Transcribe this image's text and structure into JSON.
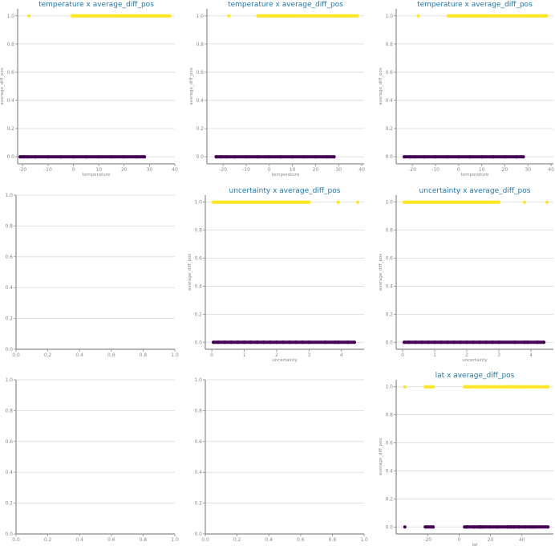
{
  "colors": {
    "positive": "#fde725",
    "negative": "#440154",
    "title": "#1f77b4",
    "axis": "#8a8a8a",
    "grid": "#d9d9d9"
  },
  "chart_data": [
    {
      "type": "scatter",
      "title": "temperature x average_diff_pos",
      "xlabel": "temperature",
      "ylabel": "average_diff_pos",
      "xlim": [
        -22,
        40
      ],
      "ylim": [
        -0.05,
        1.05
      ],
      "xticks": [
        -20,
        -10,
        0,
        10,
        20,
        30,
        40
      ],
      "yticks": [
        0.0,
        0.2,
        0.4,
        0.6,
        0.8,
        1.0
      ],
      "grid": true,
      "series": [
        {
          "values_x": [
            -17.5,
            -0.5,
            1.5,
            2.5,
            4.0,
            5.0,
            10.0,
            15.0,
            20.0,
            25.0,
            30.0,
            35.0,
            38.0
          ],
          "values_y": [
            1,
            1,
            1,
            1,
            1,
            1,
            1,
            1,
            1,
            1,
            1,
            1,
            1
          ],
          "color": "positive"
        },
        {
          "values_x": [
            -21.0,
            -19.5,
            -18.0,
            -15.0,
            -10.0,
            -5.0,
            0.0,
            5.0,
            10.0,
            15.0,
            20.0,
            25.0,
            28.0
          ],
          "values_y": [
            0,
            0,
            0,
            0,
            0,
            0,
            0,
            0,
            0,
            0,
            0,
            0,
            0
          ],
          "color": "negative"
        }
      ]
    },
    {
      "type": "scatter",
      "title": "temperature x average_diff_pos",
      "xlabel": "temperature",
      "ylabel": "average_diff_pos",
      "xlim": [
        -27,
        41
      ],
      "ylim": [
        -0.05,
        1.05
      ],
      "xticks": [
        -20,
        -10,
        0,
        10,
        20,
        30,
        40
      ],
      "yticks": [
        0.0,
        0.2,
        0.4,
        0.6,
        0.8,
        1.0
      ],
      "grid": true,
      "series": [
        {
          "values_x": [
            -17.5,
            -5.0,
            0.5,
            1.5,
            2.5,
            4.5,
            10.0,
            15.0,
            20.0,
            25.0,
            30.0,
            35.0,
            38.0
          ],
          "values_y": [
            1,
            1,
            1,
            1,
            1,
            1,
            1,
            1,
            1,
            1,
            1,
            1,
            1
          ],
          "color": "positive"
        },
        {
          "values_x": [
            -23.0,
            -21.0,
            -18.5,
            -15.0,
            -10.0,
            -5.0,
            0.0,
            5.0,
            10.0,
            15.0,
            20.0,
            25.0,
            28.0
          ],
          "values_y": [
            0,
            0,
            0,
            0,
            0,
            0,
            0,
            0,
            0,
            0,
            0,
            0,
            0
          ],
          "color": "negative"
        }
      ]
    },
    {
      "type": "scatter",
      "title": "temperature x average_diff_pos",
      "xlabel": "temperature",
      "ylabel": "average_diff_pos",
      "xlim": [
        -27,
        41
      ],
      "ylim": [
        -0.05,
        1.05
      ],
      "xticks": [
        -20,
        -10,
        0,
        10,
        20,
        30,
        40
      ],
      "yticks": [
        0.0,
        0.2,
        0.4,
        0.6,
        0.8,
        1.0
      ],
      "grid": true,
      "series": [
        {
          "values_x": [
            -17.5,
            -4.5,
            1.0,
            2.0,
            3.5,
            5.0,
            10.0,
            15.0,
            20.0,
            25.0,
            30.0,
            35.0,
            38.0
          ],
          "values_y": [
            1,
            1,
            1,
            1,
            1,
            1,
            1,
            1,
            1,
            1,
            1,
            1,
            1
          ],
          "color": "positive"
        },
        {
          "values_x": [
            -23.5,
            -21.0,
            -19.0,
            -15.0,
            -10.0,
            -5.0,
            0.0,
            5.0,
            10.0,
            15.0,
            20.0,
            25.0,
            28.0
          ],
          "values_y": [
            0,
            0,
            0,
            0,
            0,
            0,
            0,
            0,
            0,
            0,
            0,
            0,
            0
          ],
          "color": "negative"
        }
      ]
    },
    {
      "type": "scatter",
      "title": "",
      "xlabel": "",
      "ylabel": "",
      "xlim": [
        0,
        1
      ],
      "ylim": [
        0,
        1
      ],
      "xticks": [
        0.0,
        0.2,
        0.4,
        0.6,
        0.8,
        1.0
      ],
      "yticks": [
        0.0,
        0.2,
        0.4,
        0.6,
        0.8,
        1.0
      ],
      "grid": true,
      "series": []
    },
    {
      "type": "scatter",
      "title": "uncertainty x average_diff_pos",
      "xlabel": "uncertainty",
      "ylabel": "average_diff_pos",
      "xlim": [
        -0.2,
        4.7
      ],
      "ylim": [
        -0.05,
        1.05
      ],
      "xticks": [
        0,
        1,
        2,
        3,
        4
      ],
      "yticks": [
        0.0,
        0.2,
        0.4,
        0.6,
        0.8,
        1.0
      ],
      "grid": true,
      "series": [
        {
          "values_x": [
            0.05,
            0.2,
            0.4,
            0.6,
            0.8,
            1.0,
            1.2,
            1.4,
            1.6,
            1.8,
            2.0,
            2.2,
            2.4,
            2.6,
            2.8,
            3.0,
            3.9,
            4.5
          ],
          "values_y": [
            1,
            1,
            1,
            1,
            1,
            1,
            1,
            1,
            1,
            1,
            1,
            1,
            1,
            1,
            1,
            1,
            1,
            1
          ],
          "color": "positive"
        },
        {
          "values_x": [
            0.05,
            0.2,
            0.4,
            0.6,
            0.8,
            1.0,
            1.2,
            1.4,
            1.6,
            1.8,
            2.0,
            2.2,
            2.4,
            2.6,
            2.8,
            3.0,
            3.5,
            3.8,
            3.9,
            4.2,
            4.4
          ],
          "values_y": [
            0,
            0,
            0,
            0,
            0,
            0,
            0,
            0,
            0,
            0,
            0,
            0,
            0,
            0,
            0,
            0,
            0,
            0,
            0,
            0,
            0
          ],
          "color": "negative"
        }
      ]
    },
    {
      "type": "scatter",
      "title": "uncertainty x average_diff_pos",
      "xlabel": "uncertainty",
      "ylabel": "average_diff_pos",
      "xlim": [
        -0.2,
        4.7
      ],
      "ylim": [
        -0.05,
        1.05
      ],
      "xticks": [
        0,
        1,
        2,
        3,
        4
      ],
      "yticks": [
        0.0,
        0.2,
        0.4,
        0.6,
        0.8,
        1.0
      ],
      "grid": true,
      "series": [
        {
          "values_x": [
            0.05,
            0.2,
            0.4,
            0.6,
            0.8,
            1.0,
            1.2,
            1.4,
            1.6,
            1.8,
            2.0,
            2.2,
            2.4,
            2.6,
            2.8,
            3.0,
            3.8,
            4.5
          ],
          "values_y": [
            1,
            1,
            1,
            1,
            1,
            1,
            1,
            1,
            1,
            1,
            1,
            1,
            1,
            1,
            1,
            1,
            1,
            1
          ],
          "color": "positive"
        },
        {
          "values_x": [
            0.05,
            0.2,
            0.4,
            0.6,
            0.8,
            1.0,
            1.2,
            1.4,
            1.6,
            1.8,
            2.0,
            2.2,
            2.4,
            2.6,
            2.8,
            3.0,
            3.5,
            3.8,
            3.9,
            4.2,
            4.4
          ],
          "values_y": [
            0,
            0,
            0,
            0,
            0,
            0,
            0,
            0,
            0,
            0,
            0,
            0,
            0,
            0,
            0,
            0,
            0,
            0,
            0,
            0,
            0
          ],
          "color": "negative"
        }
      ]
    },
    {
      "type": "scatter",
      "title": "",
      "xlabel": "",
      "ylabel": "",
      "xlim": [
        0,
        1
      ],
      "ylim": [
        0,
        1
      ],
      "xticks": [
        0.0,
        0.2,
        0.4,
        0.6,
        0.8,
        1.0
      ],
      "yticks": [
        0.0,
        0.2,
        0.4,
        0.6,
        0.8,
        1.0
      ],
      "grid": true,
      "series": []
    },
    {
      "type": "scatter",
      "title": "",
      "xlabel": "",
      "ylabel": "",
      "xlim": [
        0,
        1
      ],
      "ylim": [
        0,
        1
      ],
      "xticks": [
        0.0,
        0.2,
        0.4,
        0.6,
        0.8,
        1.0
      ],
      "yticks": [
        0.0,
        0.2,
        0.4,
        0.6,
        0.8,
        1.0
      ],
      "grid": true,
      "series": []
    },
    {
      "type": "scatter",
      "title": "lat x average_diff_pos",
      "xlabel": "lat",
      "ylabel": "average_diff_pos",
      "xlim": [
        -40,
        60
      ],
      "ylim": [
        -0.05,
        1.05
      ],
      "xticks": [
        -20,
        0,
        20,
        40
      ],
      "yticks": [
        0.0,
        0.2,
        0.4,
        0.6,
        0.8,
        1.0
      ],
      "grid": true,
      "series": [
        {
          "values_x": [
            -34.5,
            -21.5,
            -16.5,
            3.5,
            5.0,
            9.5,
            13.0,
            14.0,
            15.5,
            19.5,
            24.5,
            31.0,
            33.0,
            35.0,
            38.0,
            42.0,
            46.0,
            47.5,
            56.5
          ],
          "values_y": [
            1,
            1,
            1,
            1,
            1,
            1,
            1,
            1,
            1,
            1,
            1,
            1,
            1,
            1,
            1,
            1,
            1,
            1,
            1
          ],
          "color": "positive"
        },
        {
          "values_x": [
            -34.5,
            -21.5,
            -16.5,
            3.5,
            5.0,
            9.5,
            13.0,
            14.0,
            15.5,
            19.5,
            24.5,
            31.0,
            33.0,
            35.0,
            38.0,
            42.0,
            46.0,
            47.5,
            56.5
          ],
          "values_y": [
            0,
            0,
            0,
            0,
            0,
            0,
            0,
            0,
            0,
            0,
            0,
            0,
            0,
            0,
            0,
            0,
            0,
            0,
            0
          ],
          "color": "negative"
        }
      ]
    }
  ]
}
